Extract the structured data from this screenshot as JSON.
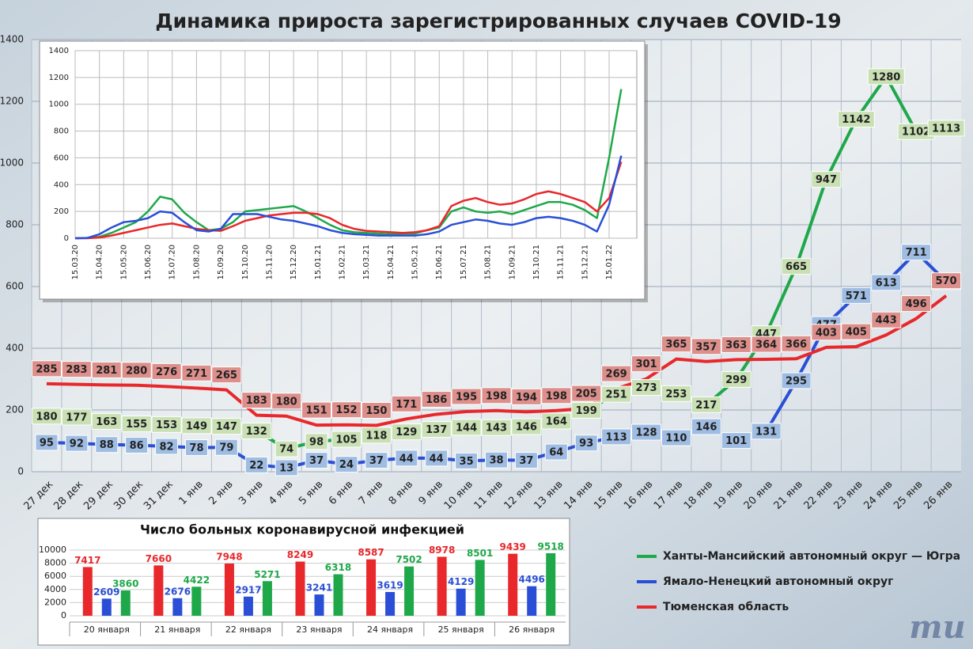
{
  "chart_data": [
    {
      "type": "line",
      "title": "Динамика прироста зарегистрированных случаев COVID-19",
      "categories": [
        "27 дек",
        "28 дек",
        "29 дек",
        "30 дек",
        "31 дек",
        "1 янв",
        "2 янв",
        "3 янв",
        "4 янв",
        "5 янв",
        "6 янв",
        "7 янв",
        "8 янв",
        "9 янв",
        "10 янв",
        "11 янв",
        "12 янв",
        "13 янв",
        "14 янв",
        "15 янв",
        "16 янв",
        "17 янв",
        "18 янв",
        "19 янв",
        "20 янв",
        "21 янв",
        "22 янв",
        "23 янв",
        "24 янв",
        "25 янв",
        "26 янв"
      ],
      "series": [
        {
          "name": "Ханты-Мансийский автономный округ — Югра",
          "color": "#1fa84a",
          "label_color": "#c9e0b4",
          "values": [
            180,
            177,
            163,
            155,
            153,
            149,
            147,
            132,
            74,
            98,
            105,
            118,
            129,
            137,
            144,
            143,
            146,
            164,
            199,
            251,
            273,
            253,
            217,
            299,
            447,
            665,
            947,
            1142,
            1280,
            1102,
            1113
          ]
        },
        {
          "name": "Ямало-Ненецкий автономный округ",
          "color": "#2a4fd6",
          "label_color": "#9fbde3",
          "values": [
            95,
            92,
            88,
            86,
            82,
            78,
            79,
            22,
            13,
            37,
            24,
            37,
            44,
            44,
            35,
            38,
            37,
            64,
            93,
            113,
            128,
            110,
            146,
            101,
            131,
            295,
            477,
            571,
            613,
            711,
            616
          ]
        },
        {
          "name": "Тюменская область",
          "color": "#e8282b",
          "label_color": "#dc8f8b",
          "values": [
            285,
            283,
            281,
            280,
            276,
            271,
            265,
            183,
            180,
            151,
            152,
            150,
            171,
            186,
            195,
            198,
            194,
            198,
            205,
            269,
            301,
            365,
            357,
            363,
            364,
            366,
            403,
            405,
            443,
            496,
            570
          ]
        }
      ],
      "ylim": [
        0,
        1400
      ],
      "yticks": [
        0,
        200,
        400,
        600,
        800,
        1000,
        1200,
        1400
      ],
      "grid": true,
      "data_labels": true,
      "legend": "bottom-right"
    },
    {
      "type": "line",
      "categories": [
        "15.03.20",
        null,
        "15.04.20",
        null,
        "15.05.20",
        null,
        "15.06.20",
        null,
        "15.07.20",
        null,
        "15.08.20",
        null,
        "15.09.20",
        null,
        "15.10.20",
        null,
        "15.11.20",
        null,
        "15.12.20",
        null,
        "15.01.21",
        null,
        "15.02.21",
        null,
        "15.03.21",
        null,
        "15.04.21",
        null,
        "15.05.21",
        null,
        "15.06.21",
        null,
        "15.07.21",
        null,
        "15.08.21",
        null,
        "15.09.21",
        null,
        "15.10.21",
        null,
        "15.11.21",
        null,
        "15.12.21",
        null,
        "15.01.22",
        null
      ],
      "series": [
        {
          "color": "#1fa84a",
          "values": [
            0,
            2,
            10,
            40,
            80,
            120,
            200,
            310,
            290,
            190,
            120,
            60,
            70,
            120,
            200,
            210,
            220,
            230,
            240,
            200,
            150,
            100,
            60,
            45,
            40,
            35,
            30,
            35,
            35,
            60,
            80,
            200,
            230,
            200,
            190,
            200,
            180,
            210,
            240,
            270,
            270,
            250,
            210,
            150,
            600,
            1113
          ]
        },
        {
          "color": "#e8282b",
          "values": [
            0,
            0,
            5,
            20,
            40,
            60,
            80,
            100,
            110,
            90,
            70,
            60,
            55,
            90,
            130,
            150,
            170,
            180,
            190,
            190,
            180,
            150,
            100,
            70,
            55,
            50,
            45,
            40,
            45,
            60,
            90,
            240,
            280,
            300,
            270,
            250,
            260,
            290,
            330,
            350,
            330,
            300,
            270,
            200,
            300,
            570
          ]
        },
        {
          "color": "#2a4fd6",
          "values": [
            0,
            2,
            30,
            80,
            120,
            130,
            150,
            200,
            190,
            120,
            60,
            50,
            70,
            180,
            180,
            180,
            160,
            140,
            130,
            110,
            90,
            60,
            40,
            30,
            25,
            20,
            20,
            20,
            20,
            30,
            50,
            100,
            120,
            140,
            130,
            110,
            100,
            120,
            150,
            160,
            150,
            130,
            100,
            50,
            250,
            616
          ]
        }
      ],
      "ylim": [
        0,
        1400
      ],
      "yticks": [
        0,
        200,
        400,
        600,
        800,
        1000,
        1200,
        1400
      ],
      "grid": true
    },
    {
      "type": "bar",
      "title": "Число больных коронавирусной инфекцией",
      "categories": [
        "20 января",
        "21 января",
        "22 января",
        "23 января",
        "24 января",
        "25 января",
        "26 января"
      ],
      "series": [
        {
          "color": "#e8282b",
          "values": [
            7417,
            7660,
            7948,
            8249,
            8587,
            8978,
            9439
          ]
        },
        {
          "color": "#2a4fd6",
          "values": [
            2609,
            2676,
            2917,
            3241,
            3619,
            4129,
            4496
          ]
        },
        {
          "color": "#1fa84a",
          "values": [
            3860,
            4422,
            5271,
            6318,
            7502,
            8501,
            9518
          ]
        }
      ],
      "ylim": [
        0,
        10000
      ],
      "yticks": [
        0,
        2000,
        4000,
        6000,
        8000,
        10000
      ],
      "grid": true,
      "data_labels": true
    }
  ],
  "logo": "mu"
}
